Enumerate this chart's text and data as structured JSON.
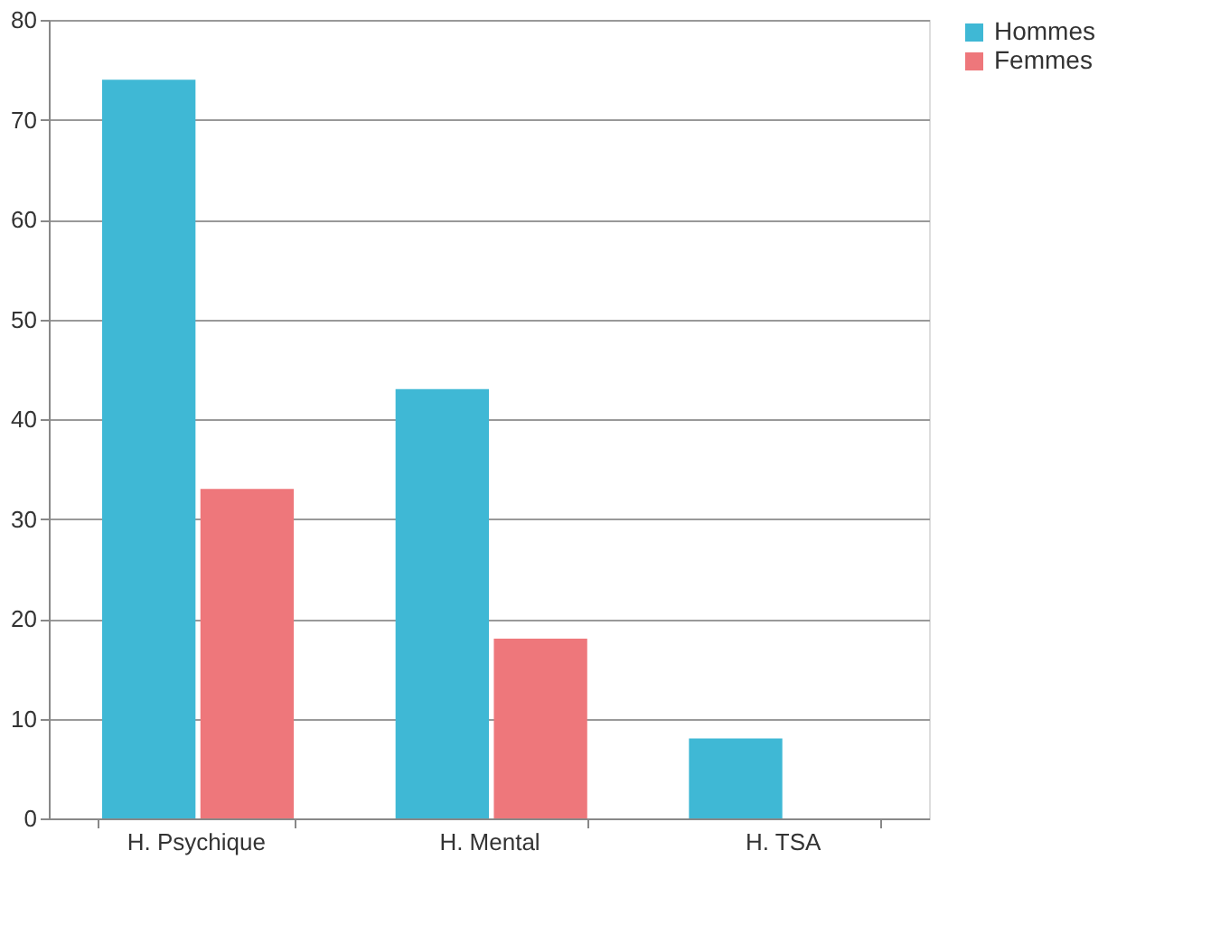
{
  "chart_data": {
    "type": "bar",
    "categories": [
      "H. Psychique",
      "H. Mental",
      "H. TSA"
    ],
    "series": [
      {
        "name": "Hommes",
        "color": "#3fb8d5",
        "values": [
          74,
          43,
          8
        ]
      },
      {
        "name": "Femmes",
        "color": "#ee777b",
        "values": [
          33,
          18,
          null
        ]
      }
    ],
    "ylim": [
      0,
      80
    ],
    "yticks": [
      0,
      10,
      20,
      30,
      40,
      50,
      60,
      70,
      80
    ],
    "grid": "y",
    "legend": "right"
  }
}
